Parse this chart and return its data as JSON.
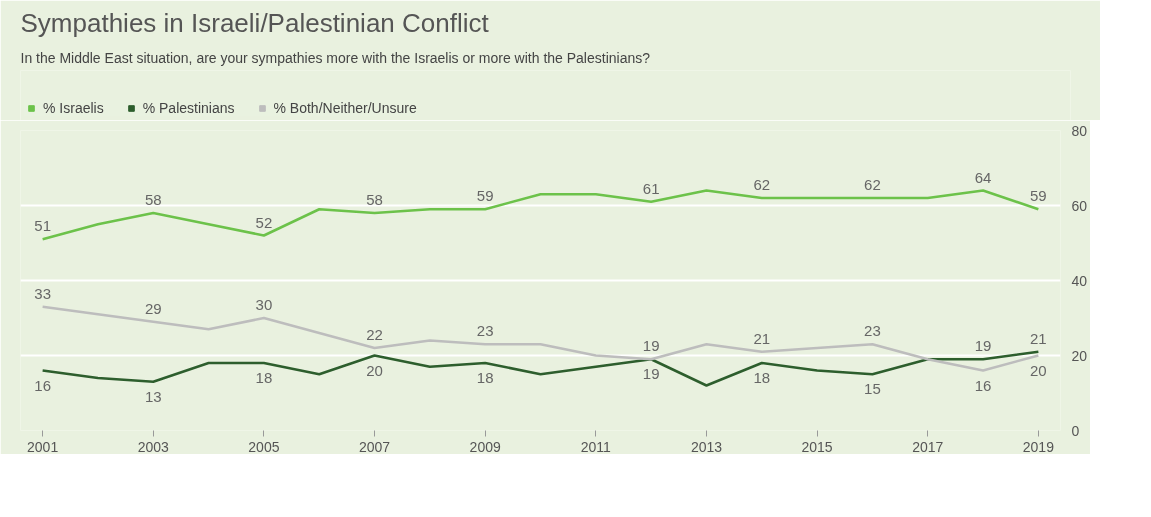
{
  "chart_data": {
    "type": "line",
    "title": "Sympathies in Israeli/Palestinian Conflict",
    "subtitle": "In the Middle East situation, are your sympathies more with the Israelis or more with the Palestinians?",
    "x": [
      2001,
      2002,
      2003,
      2004,
      2005,
      2006,
      2007,
      2008,
      2009,
      2010,
      2011,
      2012,
      2013,
      2014,
      2015,
      2016,
      2017,
      2018,
      2019
    ],
    "series": [
      {
        "name": "% Israelis",
        "color": "#6cc24a",
        "values": [
          51,
          55,
          58,
          55,
          52,
          59,
          58,
          59,
          59,
          63,
          63,
          61,
          64,
          62,
          62,
          62,
          62,
          64,
          59
        ],
        "value_labels": [
          "51",
          null,
          "58",
          null,
          "52",
          null,
          "58",
          null,
          "59",
          null,
          null,
          "61",
          null,
          "62",
          null,
          "62",
          null,
          "64",
          "59"
        ]
      },
      {
        "name": "% Palestinians",
        "color": "#2d5e2d",
        "values": [
          16,
          14,
          13,
          18,
          18,
          15,
          20,
          17,
          18,
          15,
          17,
          19,
          12,
          18,
          16,
          15,
          19,
          19,
          21
        ],
        "value_labels": [
          "16",
          null,
          "13",
          null,
          "18",
          null,
          "20",
          null,
          "18",
          null,
          null,
          "19",
          null,
          "18",
          null,
          "15",
          null,
          "19",
          "21"
        ]
      },
      {
        "name": "% Both/Neither/Unsure",
        "color": "#bdbdbd",
        "values": [
          33,
          31,
          29,
          27,
          30,
          26,
          22,
          24,
          23,
          23,
          20,
          19,
          23,
          21,
          22,
          23,
          19,
          16,
          20
        ],
        "value_labels": [
          "33",
          null,
          "29",
          null,
          "30",
          null,
          "22",
          null,
          "23",
          null,
          null,
          "19",
          null,
          "21",
          null,
          "23",
          null,
          "16",
          "20"
        ]
      }
    ],
    "xlim": [
      2000.6,
      2019.4
    ],
    "xticks": [
      2001,
      2003,
      2005,
      2007,
      2009,
      2011,
      2013,
      2015,
      2017,
      2019
    ],
    "ylim": [
      0,
      80
    ],
    "yticks": [
      0,
      20,
      40,
      60,
      80
    ],
    "grid": "y",
    "legend": "top left",
    "marker": "none",
    "line_style": "solid"
  }
}
